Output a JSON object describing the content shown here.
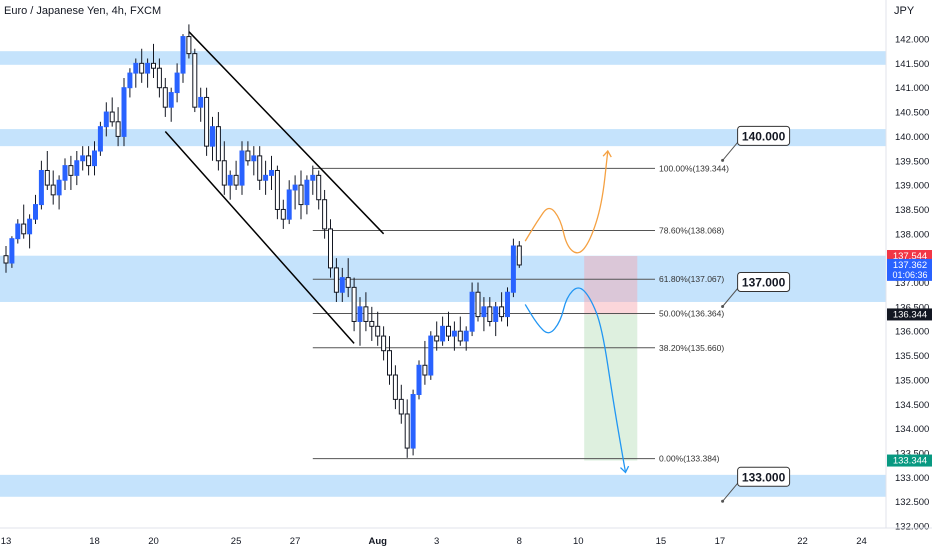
{
  "header": {
    "symbol_label": "Euro / Japanese Yen, 4h, FXCM",
    "currency": "JPY"
  },
  "chart_data": {
    "type": "candlestick",
    "ylim": [
      131.8,
      142.6
    ],
    "y_ticks": [
      132.0,
      132.5,
      133.0,
      133.5,
      134.0,
      134.5,
      135.0,
      135.5,
      136.0,
      136.5,
      137.0,
      137.5,
      138.0,
      138.5,
      139.0,
      139.5,
      140.0,
      140.5,
      141.0,
      141.5,
      142.0
    ],
    "y_tick_labels": [
      "132.000",
      "132.500",
      "133.000",
      "133.500",
      "134.000",
      "134.500",
      "135.000",
      "135.500",
      "136.000",
      "136.500",
      "137.000",
      "137.500",
      "138.000",
      "138.500",
      "139.000",
      "139.500",
      "140.000",
      "140.500",
      "141.000",
      "141.500",
      "142.000"
    ],
    "x_ticks": [
      {
        "label": "13",
        "bar": 0
      },
      {
        "label": "18",
        "bar": 15
      },
      {
        "label": "20",
        "bar": 25
      },
      {
        "label": "25",
        "bar": 39
      },
      {
        "label": "27",
        "bar": 49
      },
      {
        "label": "Aug",
        "bar": 63
      },
      {
        "label": "3",
        "bar": 73
      },
      {
        "label": "8",
        "bar": 87
      },
      {
        "label": "10",
        "bar": 97
      },
      {
        "label": "15",
        "bar": 111
      },
      {
        "label": "17",
        "bar": 121
      },
      {
        "label": "22",
        "bar": 135
      },
      {
        "label": "24",
        "bar": 145
      }
    ],
    "x_range_bars": [
      0,
      152
    ],
    "zones": [
      {
        "low": 141.47,
        "high": 141.75
      },
      {
        "low": 139.8,
        "high": 140.15
      },
      {
        "low": 136.6,
        "high": 137.55
      },
      {
        "low": 132.6,
        "high": 133.05
      }
    ],
    "zone_labels": [
      {
        "text": "140.000",
        "value": 140.0,
        "bar": 124
      },
      {
        "text": "137.000",
        "value": 137.0,
        "bar": 124
      },
      {
        "text": "133.000",
        "value": 133.0,
        "bar": 124
      }
    ],
    "fib_levels": [
      {
        "label": "100.00%(139.344)",
        "value": 139.344
      },
      {
        "label": "78.60%(138.068)",
        "value": 138.068
      },
      {
        "label": "61.80%(137.067)",
        "value": 137.067
      },
      {
        "label": "50.00%(136.364)",
        "value": 136.364
      },
      {
        "label": "38.20%(135.660)",
        "value": 135.66
      },
      {
        "label": "0.00%(133.384)",
        "value": 133.384
      }
    ],
    "fib_bar_range": [
      52,
      110
    ],
    "channel_lines": [
      {
        "from": [
          31,
          142.15
        ],
        "to": [
          64,
          138.0
        ]
      },
      {
        "from": [
          27,
          140.1
        ],
        "to": [
          59,
          135.75
        ]
      }
    ],
    "position": {
      "bar_start": 98,
      "bar_end": 107,
      "entry": 136.344,
      "stop": 137.544,
      "target": 133.344
    },
    "price_labels": [
      {
        "text": "137.544",
        "value": 137.544,
        "color": "#f23645"
      },
      {
        "text": "137.362",
        "sub": "01:06:36",
        "value": 137.362,
        "color": "#2962ff"
      },
      {
        "text": "136.344",
        "value": 136.344,
        "color": "#131722"
      },
      {
        "text": "133.344",
        "value": 133.344,
        "color": "#089981"
      }
    ],
    "projections": [
      {
        "color": "#f5a142",
        "points": [
          [
            88,
            137.85
          ],
          [
            90,
            138.25
          ],
          [
            92,
            138.6
          ],
          [
            94,
            138.3
          ],
          [
            95,
            137.75
          ],
          [
            97,
            137.55
          ],
          [
            99,
            137.85
          ],
          [
            101,
            138.6
          ],
          [
            102,
            139.7
          ]
        ]
      },
      {
        "color": "#2196f3",
        "points": [
          [
            88,
            136.55
          ],
          [
            90,
            136.15
          ],
          [
            92,
            135.9
          ],
          [
            94,
            136.2
          ],
          [
            95,
            136.7
          ],
          [
            97,
            136.95
          ],
          [
            99,
            136.7
          ],
          [
            101,
            136.1
          ],
          [
            103,
            134.5
          ],
          [
            105,
            133.1
          ]
        ]
      }
    ],
    "candles": [
      [
        0,
        137.55,
        137.75,
        137.2,
        137.4
      ],
      [
        1,
        137.4,
        137.95,
        137.3,
        137.9
      ],
      [
        2,
        137.9,
        138.3,
        137.8,
        138.2
      ],
      [
        3,
        138.2,
        138.6,
        137.9,
        138.0
      ],
      [
        4,
        138.0,
        138.4,
        137.7,
        138.3
      ],
      [
        5,
        138.3,
        138.8,
        138.2,
        138.6
      ],
      [
        6,
        138.6,
        139.5,
        138.5,
        139.3
      ],
      [
        7,
        139.3,
        139.7,
        138.9,
        139.0
      ],
      [
        8,
        139.0,
        139.3,
        138.6,
        138.8
      ],
      [
        9,
        138.8,
        139.2,
        138.5,
        139.1
      ],
      [
        10,
        139.1,
        139.55,
        138.9,
        139.4
      ],
      [
        11,
        139.4,
        139.6,
        138.9,
        139.2
      ],
      [
        12,
        139.2,
        139.7,
        139.0,
        139.5
      ],
      [
        13,
        139.5,
        139.8,
        139.3,
        139.6
      ],
      [
        14,
        139.6,
        139.8,
        139.2,
        139.4
      ],
      [
        15,
        139.4,
        139.9,
        139.2,
        139.7
      ],
      [
        16,
        139.7,
        140.3,
        139.6,
        140.2
      ],
      [
        17,
        140.2,
        140.7,
        140.0,
        140.5
      ],
      [
        18,
        140.5,
        140.8,
        140.2,
        140.3
      ],
      [
        19,
        140.3,
        140.6,
        139.8,
        140.0
      ],
      [
        20,
        140.0,
        141.2,
        139.8,
        141.0
      ],
      [
        21,
        141.0,
        141.4,
        140.8,
        141.3
      ],
      [
        22,
        141.3,
        141.6,
        141.0,
        141.5
      ],
      [
        23,
        141.5,
        141.8,
        141.1,
        141.3
      ],
      [
        24,
        141.3,
        141.6,
        141.0,
        141.5
      ],
      [
        25,
        141.5,
        141.9,
        141.2,
        141.4
      ],
      [
        26,
        141.4,
        141.6,
        140.8,
        141.0
      ],
      [
        27,
        141.0,
        141.2,
        140.4,
        140.6
      ],
      [
        28,
        140.6,
        141.0,
        140.3,
        140.9
      ],
      [
        29,
        140.9,
        141.5,
        140.7,
        141.3
      ],
      [
        30,
        141.3,
        142.1,
        141.1,
        142.05
      ],
      [
        31,
        142.05,
        142.3,
        141.6,
        141.7
      ],
      [
        32,
        141.7,
        141.8,
        140.5,
        140.6
      ],
      [
        33,
        140.6,
        141.0,
        140.3,
        140.8
      ],
      [
        34,
        140.8,
        141.0,
        139.6,
        139.8
      ],
      [
        35,
        139.8,
        140.4,
        139.5,
        140.2
      ],
      [
        36,
        140.2,
        140.5,
        139.3,
        139.5
      ],
      [
        37,
        139.5,
        139.9,
        138.8,
        139.0
      ],
      [
        38,
        139.0,
        139.3,
        138.7,
        139.2
      ],
      [
        39,
        139.2,
        139.5,
        138.9,
        139.0
      ],
      [
        40,
        139.0,
        139.9,
        138.8,
        139.7
      ],
      [
        41,
        139.7,
        139.9,
        139.4,
        139.5
      ],
      [
        42,
        139.5,
        139.8,
        139.2,
        139.6
      ],
      [
        43,
        139.6,
        139.8,
        138.9,
        139.1
      ],
      [
        44,
        139.1,
        139.5,
        138.8,
        139.2
      ],
      [
        45,
        139.2,
        139.6,
        138.9,
        139.3
      ],
      [
        46,
        139.3,
        139.4,
        138.3,
        138.5
      ],
      [
        47,
        138.5,
        138.7,
        138.1,
        138.3
      ],
      [
        48,
        138.3,
        139.1,
        138.2,
        138.9
      ],
      [
        49,
        138.9,
        139.2,
        138.5,
        139.0
      ],
      [
        50,
        139.0,
        139.3,
        138.3,
        138.6
      ],
      [
        51,
        138.6,
        139.2,
        138.4,
        139.1
      ],
      [
        52,
        139.1,
        139.4,
        138.8,
        139.2
      ],
      [
        53,
        139.2,
        139.3,
        138.5,
        138.7
      ],
      [
        54,
        138.7,
        138.9,
        137.9,
        138.1
      ],
      [
        55,
        138.1,
        138.3,
        137.1,
        137.3
      ],
      [
        56,
        137.3,
        137.5,
        136.6,
        136.8
      ],
      [
        57,
        136.8,
        137.3,
        136.6,
        137.1
      ],
      [
        58,
        137.1,
        137.5,
        136.7,
        136.9
      ],
      [
        59,
        136.9,
        137.1,
        136.0,
        136.2
      ],
      [
        60,
        136.2,
        136.7,
        135.7,
        136.5
      ],
      [
        61,
        136.5,
        136.8,
        136.0,
        136.2
      ],
      [
        62,
        136.2,
        136.5,
        135.8,
        136.1
      ],
      [
        63,
        136.1,
        136.4,
        135.7,
        135.9
      ],
      [
        64,
        135.9,
        136.1,
        135.4,
        135.6
      ],
      [
        65,
        135.6,
        135.9,
        134.9,
        135.1
      ],
      [
        66,
        135.1,
        135.3,
        134.4,
        134.6
      ],
      [
        67,
        134.6,
        134.9,
        134.1,
        134.3
      ],
      [
        68,
        134.3,
        134.6,
        133.4,
        133.6
      ],
      [
        69,
        133.6,
        134.8,
        133.45,
        134.7
      ],
      [
        70,
        134.7,
        135.4,
        134.6,
        135.3
      ],
      [
        71,
        135.3,
        135.8,
        134.9,
        135.1
      ],
      [
        72,
        135.1,
        136.0,
        135.0,
        135.9
      ],
      [
        73,
        135.9,
        136.2,
        135.6,
        135.8
      ],
      [
        74,
        135.8,
        136.3,
        135.7,
        136.1
      ],
      [
        75,
        136.1,
        136.4,
        135.8,
        135.9
      ],
      [
        76,
        135.9,
        136.2,
        135.6,
        136.0
      ],
      [
        77,
        136.0,
        136.3,
        135.7,
        135.8
      ],
      [
        78,
        135.8,
        136.1,
        135.6,
        136.0
      ],
      [
        79,
        136.0,
        137.0,
        135.9,
        136.8
      ],
      [
        80,
        136.8,
        137.0,
        136.2,
        136.3
      ],
      [
        81,
        136.3,
        136.7,
        136.0,
        136.5
      ],
      [
        82,
        136.5,
        136.7,
        136.1,
        136.2
      ],
      [
        83,
        136.2,
        136.6,
        135.9,
        136.5
      ],
      [
        84,
        136.5,
        136.8,
        136.2,
        136.3
      ],
      [
        85,
        136.3,
        136.9,
        136.1,
        136.8
      ],
      [
        86,
        136.8,
        137.9,
        136.7,
        137.75
      ],
      [
        87,
        137.75,
        137.85,
        137.3,
        137.36
      ]
    ]
  }
}
